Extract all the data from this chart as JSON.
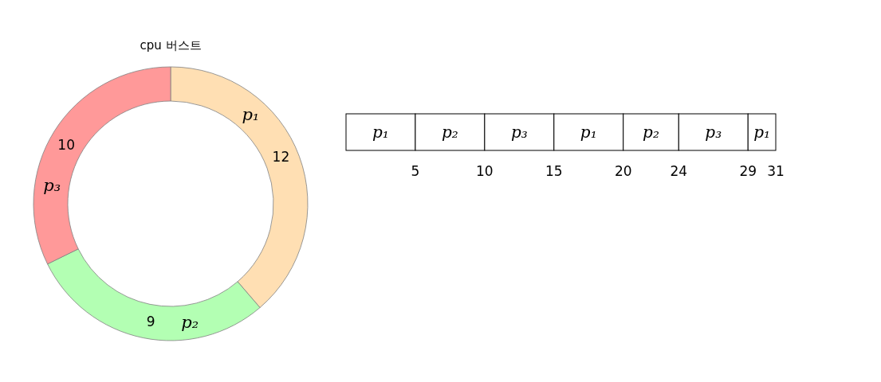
{
  "chart_data": [
    {
      "type": "donut",
      "title": "cpu 버스트",
      "categories": [
        "p₁",
        "p₂",
        "p₃"
      ],
      "values": [
        12,
        9,
        10
      ],
      "colors": [
        "#ffdfb3",
        "#b3ffb3",
        "#ff9999"
      ],
      "data_labels": true,
      "legend": false
    },
    {
      "type": "bar",
      "orientation": "horizontal",
      "stacked": true,
      "categories": [
        null
      ],
      "series": [
        {
          "name": "p₁",
          "color": "#ffffff",
          "values": [
            5
          ]
        },
        {
          "name": "p₂",
          "color": "#ffffff",
          "values": [
            5
          ]
        },
        {
          "name": "p₃",
          "color": "#ffffff",
          "values": [
            5
          ]
        },
        {
          "name": "p₁",
          "color": "#ffffff",
          "values": [
            5
          ]
        },
        {
          "name": "p₂",
          "color": "#ffffff",
          "values": [
            4
          ]
        },
        {
          "name": "p₃",
          "color": "#ffffff",
          "values": [
            5
          ]
        },
        {
          "name": "p₁",
          "color": "#ffffff",
          "values": [
            2
          ]
        }
      ],
      "xlim": [
        0,
        31
      ],
      "xticks": [
        5,
        10,
        15,
        20,
        24,
        29,
        31
      ],
      "legend": false
    }
  ]
}
